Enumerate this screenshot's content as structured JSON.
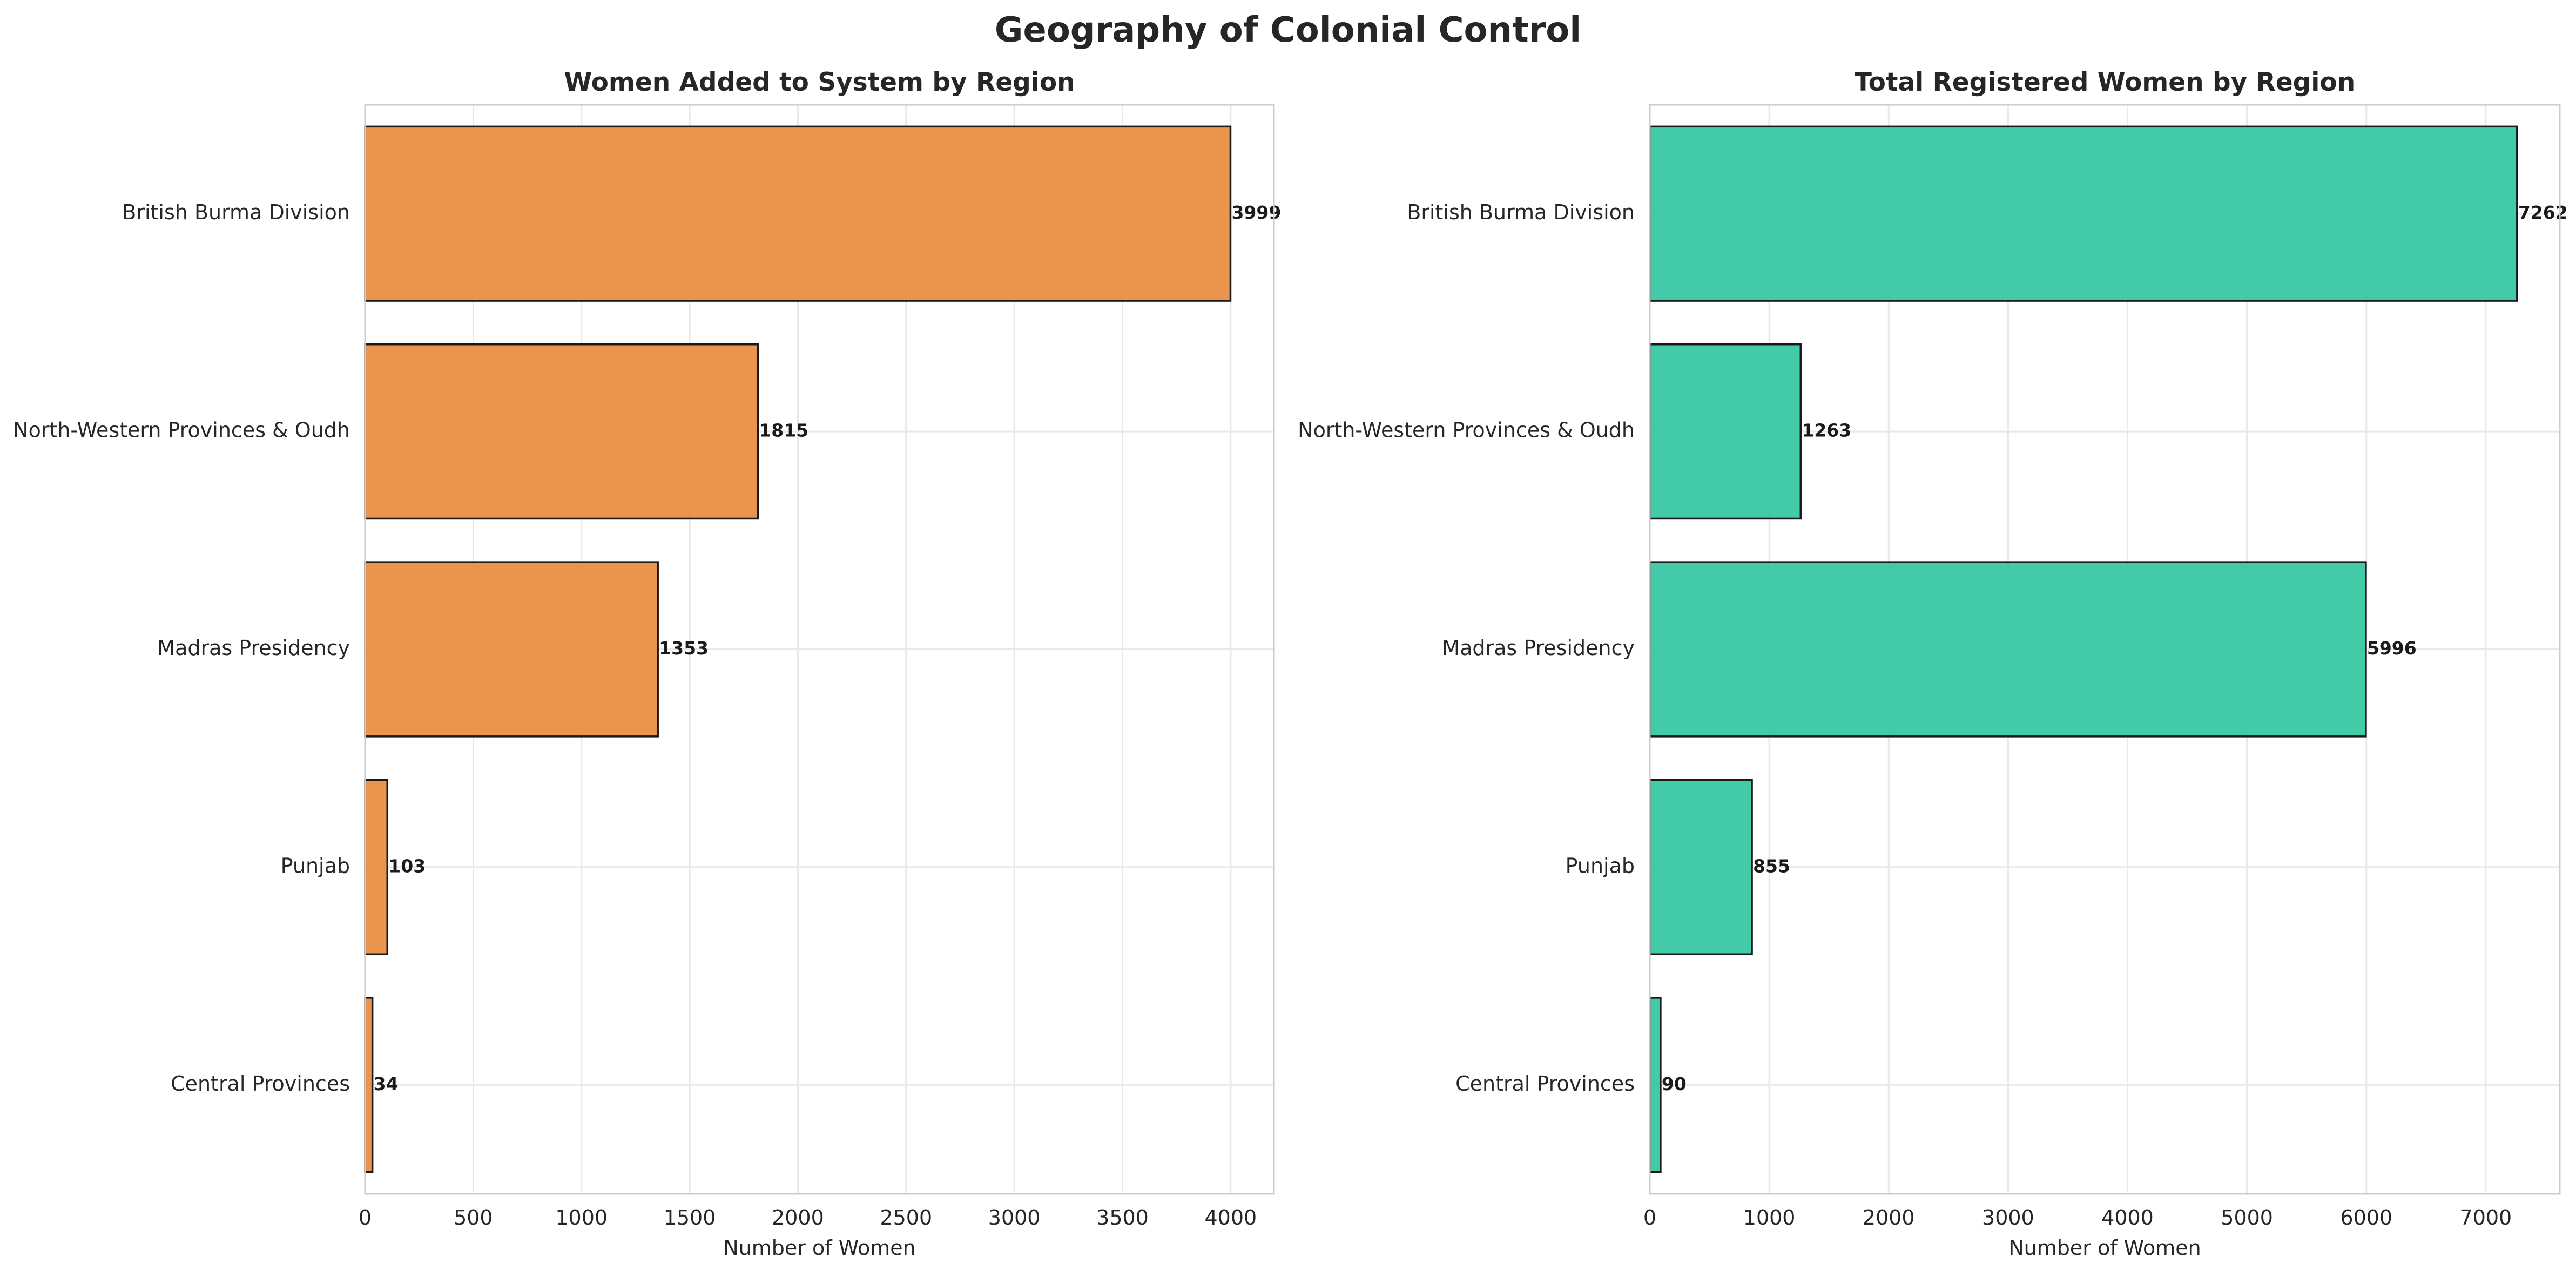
{
  "figure_title": "Geography of Colonial Control",
  "chart_data": [
    {
      "type": "bar",
      "orientation": "horizontal",
      "title": "Women Added to System by Region",
      "xlabel": "Number of Women",
      "ylabel": "",
      "categories": [
        "British Burma Division",
        "North-Western Provinces & Oudh",
        "Madras Presidency",
        "Punjab",
        "Central Provinces"
      ],
      "values": [
        3999,
        1815,
        1353,
        103,
        34
      ],
      "xlim": [
        0,
        4200
      ],
      "xticks": [
        0,
        500,
        1000,
        1500,
        2000,
        2500,
        3000,
        3500,
        4000
      ],
      "bar_color": "#e8883a",
      "grid": true
    },
    {
      "type": "bar",
      "orientation": "horizontal",
      "title": "Total Registered Women by Region",
      "xlabel": "Number of Women",
      "ylabel": "",
      "categories": [
        "British Burma Division",
        "North-Western Provinces & Oudh",
        "Madras Presidency",
        "Punjab",
        "Central Provinces"
      ],
      "values": [
        7262,
        1263,
        5996,
        855,
        90
      ],
      "xlim": [
        0,
        7620
      ],
      "xticks": [
        0,
        1000,
        2000,
        3000,
        4000,
        5000,
        6000,
        7000
      ],
      "bar_color": "#2ec4a0",
      "grid": true
    }
  ]
}
